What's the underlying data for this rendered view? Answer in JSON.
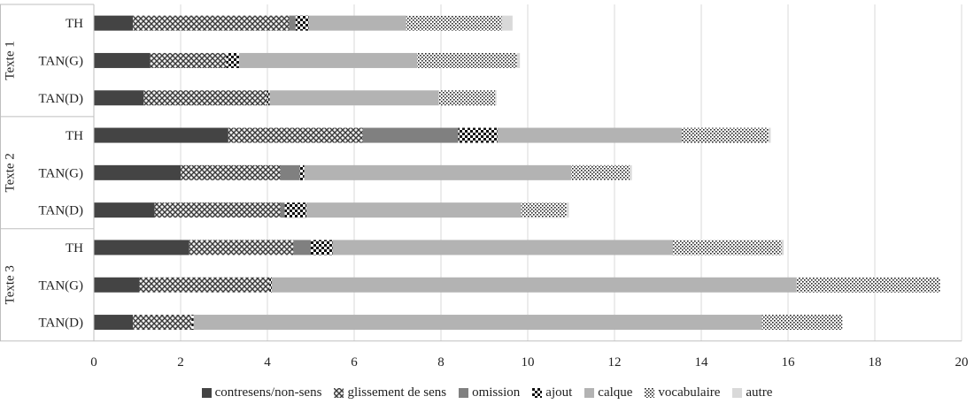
{
  "chart_data": {
    "type": "bar",
    "orientation": "horizontal",
    "stacked": true,
    "title": "",
    "xlabel": "",
    "ylabel": "",
    "xlim": [
      0,
      20
    ],
    "x_ticks": [
      "0",
      "2",
      "4",
      "6",
      "8",
      "10",
      "12",
      "14",
      "16",
      "18",
      "20"
    ],
    "grid": true,
    "legend_position": "bottom",
    "groups": [
      {
        "label": "Texte 1",
        "categories": [
          "TH",
          "TAN(G)",
          "TAN(D)"
        ]
      },
      {
        "label": "Texte 2",
        "categories": [
          "TH",
          "TAN(G)",
          "TAN(D)"
        ]
      },
      {
        "label": "Texte 3",
        "categories": [
          "TH",
          "TAN(G)",
          "TAN(D)"
        ]
      }
    ],
    "series": [
      {
        "name": "contresens/non-sens",
        "color": "#444444",
        "pattern": "solid",
        "values": [
          0.9,
          1.3,
          1.15,
          3.1,
          2.0,
          1.4,
          2.2,
          1.05,
          0.9
        ]
      },
      {
        "name": "glissement de sens",
        "color": "#555555",
        "pattern": "crosshatch",
        "values": [
          3.6,
          1.75,
          2.85,
          3.1,
          2.3,
          2.9,
          2.4,
          3.0,
          1.35
        ]
      },
      {
        "name": "omission",
        "color": "#808080",
        "pattern": "solid",
        "values": [
          0.15,
          0.0,
          0.0,
          2.2,
          0.45,
          0.1,
          0.4,
          0.0,
          0.0
        ]
      },
      {
        "name": "ajout",
        "color": "#222222",
        "pattern": "checker",
        "values": [
          0.3,
          0.3,
          0.05,
          0.9,
          0.1,
          0.5,
          0.5,
          0.05,
          0.05
        ]
      },
      {
        "name": "calque",
        "color": "#b3b3b3",
        "pattern": "solid",
        "values": [
          2.25,
          4.1,
          3.9,
          4.25,
          6.15,
          4.95,
          7.85,
          12.1,
          13.1
        ]
      },
      {
        "name": "vocabulaire",
        "color": "#cccccc",
        "pattern": "dots",
        "values": [
          2.2,
          2.3,
          1.3,
          2.0,
          1.35,
          1.05,
          2.5,
          3.3,
          1.85
        ]
      },
      {
        "name": "autre",
        "color": "#d9d9d9",
        "pattern": "solid",
        "values": [
          0.25,
          0.07,
          0.03,
          0.05,
          0.05,
          0.05,
          0.05,
          0.0,
          0.0
        ]
      }
    ]
  }
}
